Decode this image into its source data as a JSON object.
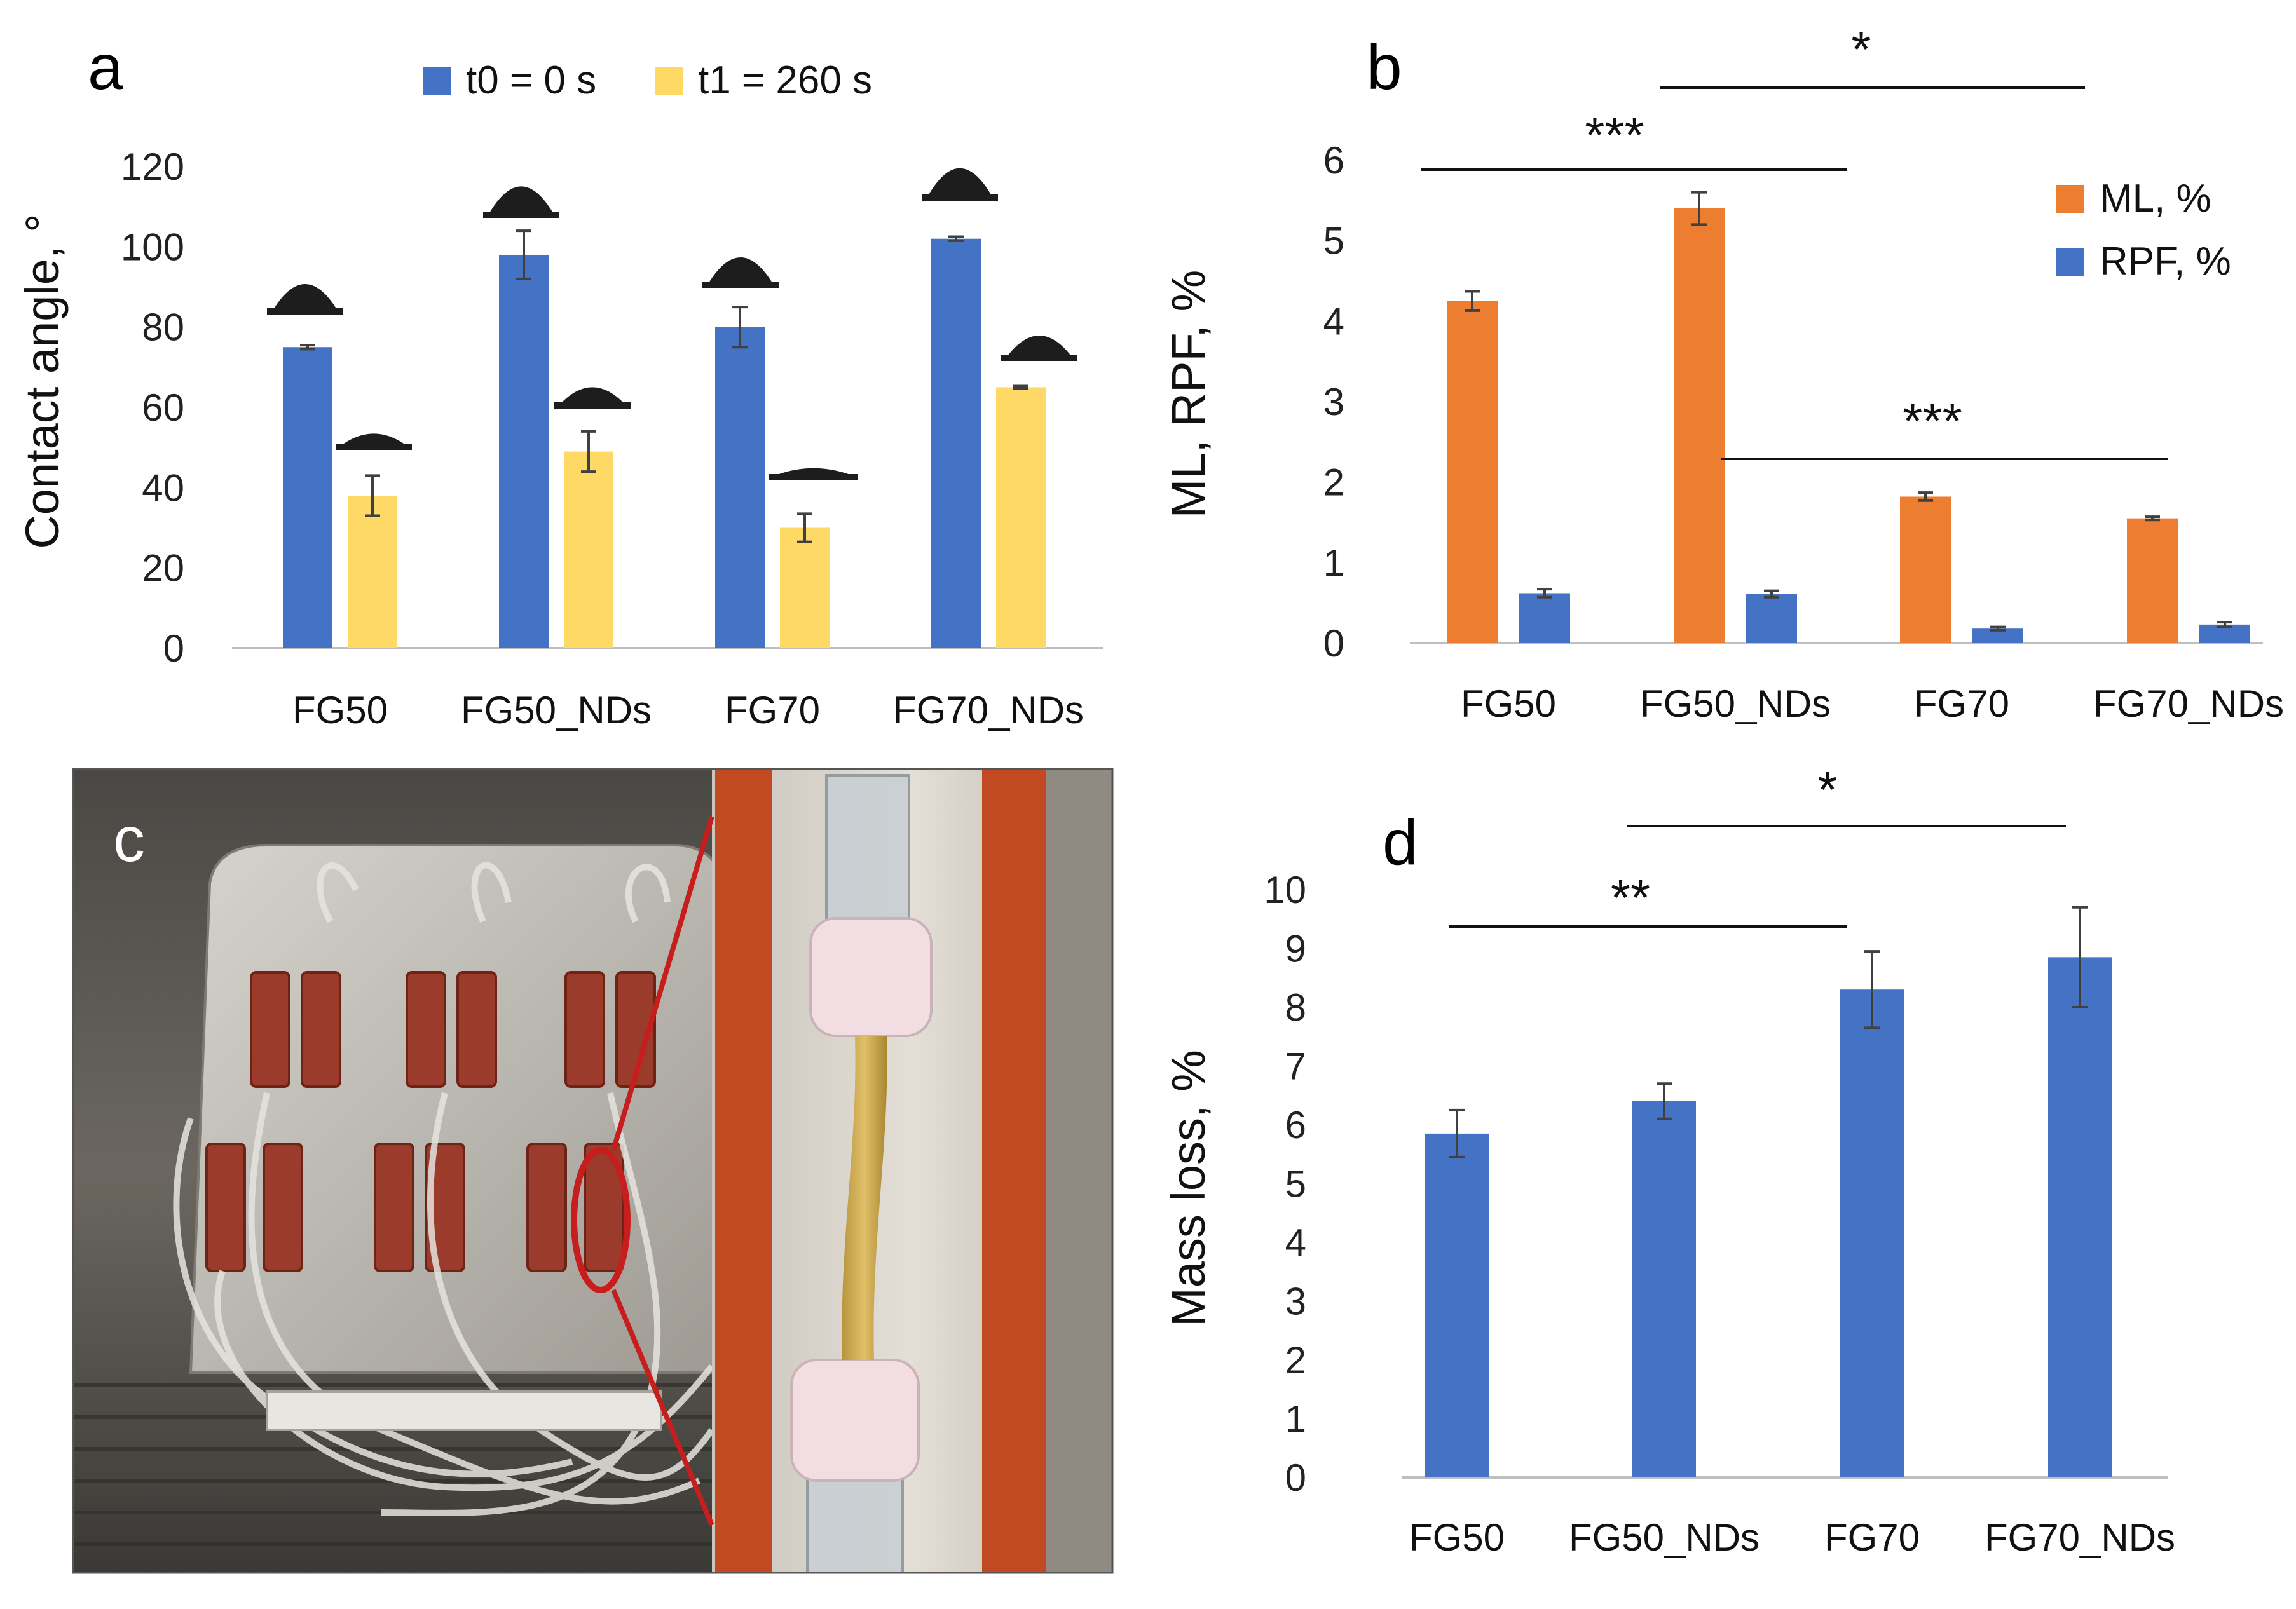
{
  "colors": {
    "blue": "#4472C4",
    "yellow": "#FFD966",
    "orange": "#ED7D31",
    "axis": "#BFBFBF",
    "error": "#404040"
  },
  "panels": {
    "a": {
      "letter": "a"
    },
    "b": {
      "letter": "b"
    },
    "c": {
      "letter": "c",
      "description": "photo of bioreactor setup (not text)"
    },
    "d": {
      "letter": "d"
    }
  },
  "chart_data": [
    {
      "id": "a",
      "type": "bar",
      "title": "",
      "ylabel": "Contact angle, °",
      "xlabel": "",
      "ylim": [
        0,
        120
      ],
      "yticks": [
        "0",
        "20",
        "40",
        "60",
        "80",
        "100",
        "120"
      ],
      "categories": [
        "FG50",
        "FG50_NDs",
        "FG70",
        "FG70_NDs"
      ],
      "series": [
        {
          "name": "t0 = 0 s",
          "color": "blue",
          "values": [
            75,
            98,
            80,
            102
          ],
          "errors": [
            0.5,
            6,
            5,
            0.5
          ]
        },
        {
          "name": "t1 = 260 s",
          "color": "yellow",
          "values": [
            38,
            49,
            30,
            65
          ],
          "errors": [
            5,
            5,
            3.5,
            0.3
          ]
        }
      ],
      "legend": "top"
    },
    {
      "id": "b",
      "type": "bar",
      "title": "",
      "ylabel": "ML, RPF,  %",
      "xlabel": "",
      "ylim": [
        0,
        6
      ],
      "yticks": [
        "0",
        "1",
        "2",
        "3",
        "4",
        "5",
        "6"
      ],
      "categories": [
        "FG50",
        "FG50_NDs",
        "FG70",
        "FG70_NDs"
      ],
      "series": [
        {
          "name": "ML, %",
          "color": "orange",
          "values": [
            4.25,
            5.4,
            1.82,
            1.55
          ],
          "errors": [
            0.12,
            0.2,
            0.05,
            0.02
          ]
        },
        {
          "name": "RPF, %",
          "color": "blue",
          "values": [
            0.62,
            0.61,
            0.18,
            0.23
          ],
          "errors": [
            0.05,
            0.04,
            0.02,
            0.03
          ]
        }
      ],
      "legend": "top-right",
      "significance": [
        {
          "label": "***",
          "from": 0,
          "to": 2
        },
        {
          "label": "*",
          "from": 1,
          "to": 3
        },
        {
          "label": "***",
          "from": 1,
          "to": 3
        }
      ]
    },
    {
      "id": "d",
      "type": "bar",
      "title": "",
      "ylabel": "Mass loss, %",
      "xlabel": "",
      "ylim": [
        0,
        10
      ],
      "yticks": [
        "0",
        "1",
        "2",
        "3",
        "4",
        "5",
        "6",
        "7",
        "8",
        "9",
        "10"
      ],
      "categories": [
        "FG50",
        "FG50_NDs",
        "FG70",
        "FG70_NDs"
      ],
      "series": [
        {
          "name": "Mass loss",
          "color": "blue",
          "values": [
            5.85,
            6.4,
            8.3,
            8.85
          ],
          "errors": [
            0.4,
            0.3,
            0.65,
            0.85
          ]
        }
      ],
      "legend": "none",
      "significance": [
        {
          "label": "**",
          "from": 0,
          "to": 2
        },
        {
          "label": "*",
          "from": 1,
          "to": 3
        }
      ]
    }
  ]
}
